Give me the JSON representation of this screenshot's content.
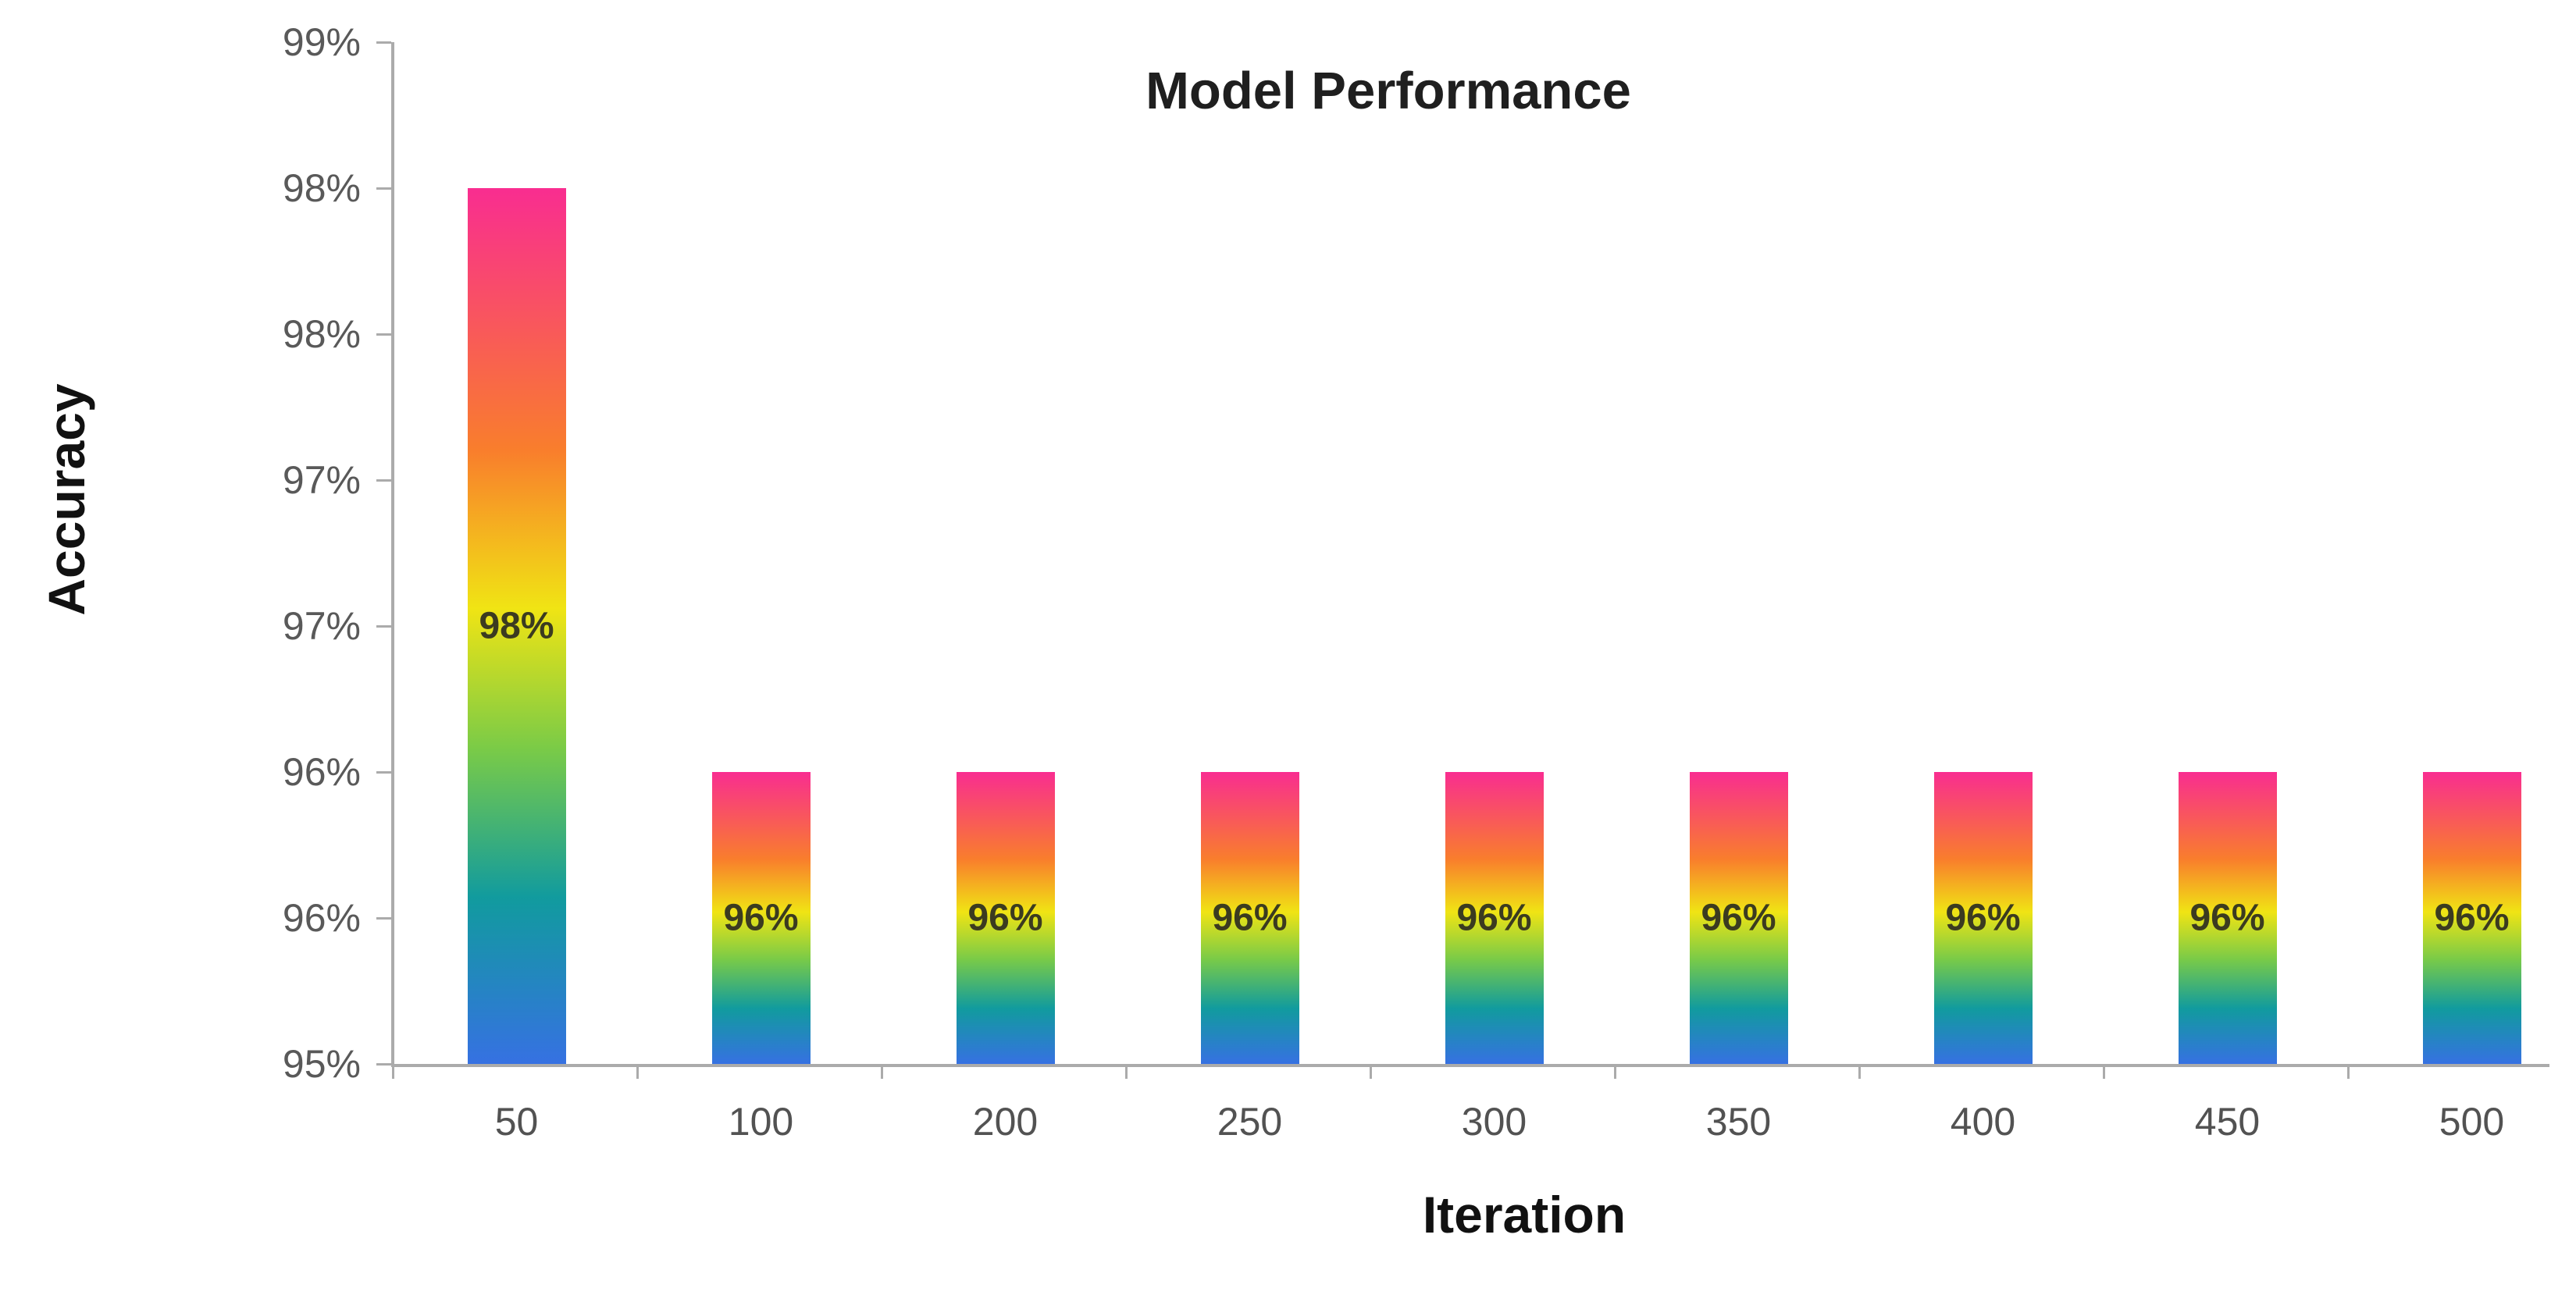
{
  "chart_data": {
    "type": "bar",
    "title": "Model Performance",
    "xlabel": "Iteration",
    "ylabel": "Accuracy",
    "categories": [
      "50",
      "100",
      "200",
      "250",
      "300",
      "350",
      "400",
      "450",
      "500"
    ],
    "series": [
      {
        "name": "Accuracy",
        "values": [
          98,
          96,
          96,
          96,
          96,
          96,
          96,
          96,
          96
        ],
        "data_labels": [
          "98%",
          "96%",
          "96%",
          "96%",
          "96%",
          "96%",
          "96%",
          "96%",
          "96%"
        ]
      }
    ],
    "y_axis": {
      "min": 95,
      "max": 98.5,
      "step": 0.5,
      "unit": "%",
      "tick_labels_top_to_bottom": [
        "99%",
        "98%",
        "98%",
        "97%",
        "97%",
        "96%",
        "96%",
        "95%"
      ]
    },
    "grid": false,
    "legend": false,
    "data_label_position": "center-of-bar",
    "bar_gradient_top_to_bottom": [
      {
        "stop": 0.0,
        "color": "#F92D90"
      },
      {
        "stop": 0.3,
        "color": "#F97E2C"
      },
      {
        "stop": 0.48,
        "color": "#F0E414"
      },
      {
        "stop": 0.64,
        "color": "#7ACB47"
      },
      {
        "stop": 0.81,
        "color": "#119B9E"
      },
      {
        "stop": 1.0,
        "color": "#3671E2"
      }
    ],
    "colors": {
      "background": "#FFFFFF",
      "axis": "#ABABAB",
      "y_tick_label": "#595959",
      "x_tick_label": "#525252",
      "data_label": "#3B3B20",
      "title": "#1F1F1F",
      "axis_title": "#111111"
    }
  }
}
